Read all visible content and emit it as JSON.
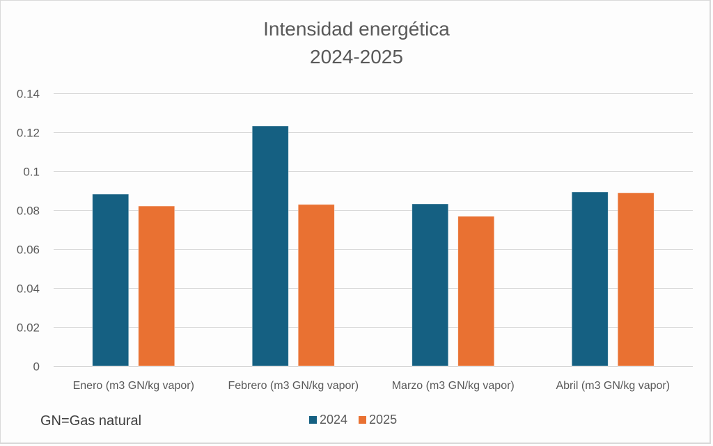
{
  "chart_data": {
    "type": "bar",
    "title": "Intensidad energética",
    "subtitle": "2024-2025",
    "categories": [
      "Enero (m3 GN/kg vapor)",
      "Febrero (m3 GN/kg vapor)",
      "Marzo (m3 GN/kg vapor)",
      "Abril (m3 GN/kg vapor)"
    ],
    "series": [
      {
        "name": "2024",
        "color": "#156082",
        "values": [
          0.0882,
          0.1232,
          0.0832,
          0.0893
        ]
      },
      {
        "name": "2025",
        "color": "#E97132",
        "values": [
          0.0821,
          0.0829,
          0.0768,
          0.0889
        ]
      }
    ],
    "xlabel": "",
    "ylabel": "",
    "ylim": [
      0,
      0.14
    ],
    "yticks": [
      "0",
      "0.02",
      "0.04",
      "0.06",
      "0.08",
      "0.1",
      "0.12",
      "0.14"
    ],
    "ytick_values": [
      0,
      0.02,
      0.04,
      0.06,
      0.08,
      0.1,
      0.12,
      0.14
    ],
    "grid": true,
    "legend_position": "bottom",
    "annotation": "GN=Gas natural"
  }
}
